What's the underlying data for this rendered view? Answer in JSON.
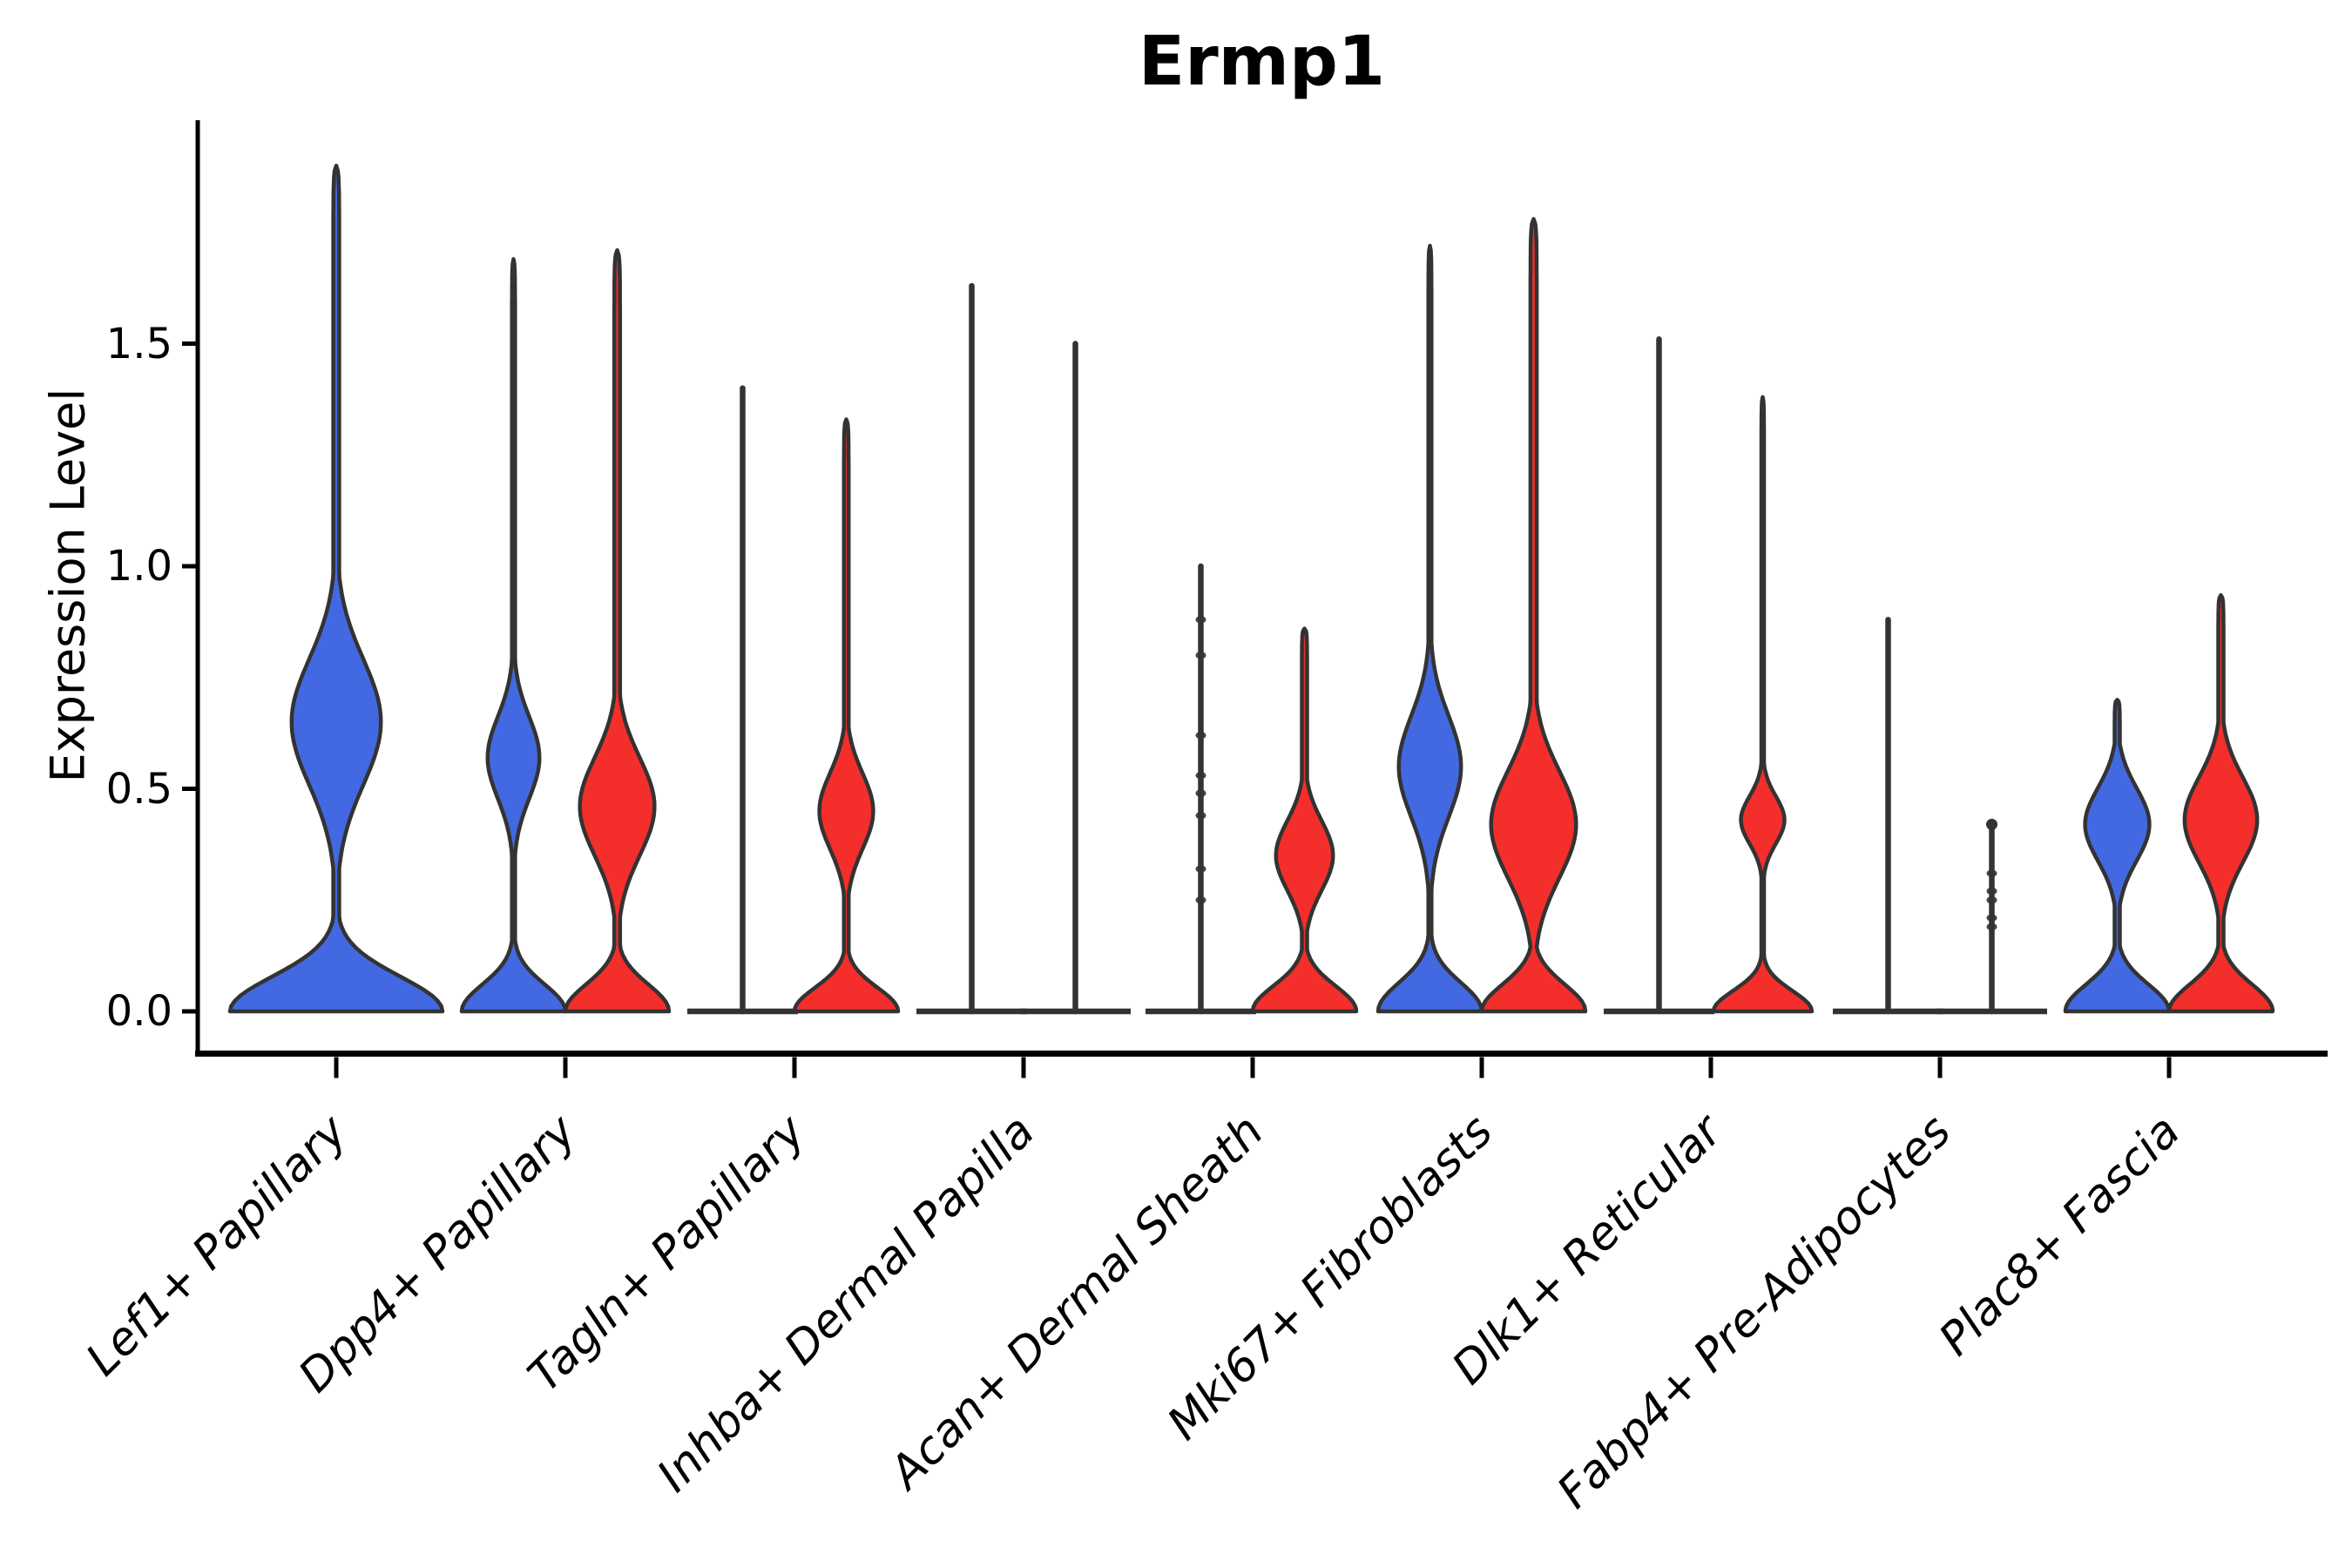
{
  "chart_data": {
    "type": "violin",
    "title": "Ermp1",
    "ylabel": "Expression Level",
    "xlabel": "",
    "ytick_labels": [
      "0.0",
      "0.5",
      "1.0",
      "1.5"
    ],
    "ytick_values": [
      0.0,
      0.5,
      1.0,
      1.5
    ],
    "ylim": [
      -0.09,
      2.0
    ],
    "grid": false,
    "legend_position": "none",
    "groups": [
      {
        "id": "blue",
        "color": "#4269E1"
      },
      {
        "id": "red",
        "color": "#F42E2A"
      }
    ],
    "categories": [
      "Lef1+ Papillary",
      "Dpp4+ Papillary",
      "Tagln+ Papillary",
      "Inhba+ Dermal Papilla",
      "Acan+ Dermal Sheath",
      "Mki67+ Fibroblasts",
      "Dlk1+ Reticular",
      "Fabp4+ Pre-Adipocytes",
      "Plac8+ Fascia"
    ],
    "violins": [
      {
        "category": "Lef1+ Papillary",
        "group": "blue",
        "kind": "violin",
        "span": "full",
        "max_expression": 1.9,
        "base_width": 1.0,
        "base_falloff": 0.11,
        "bulge_center": 0.65,
        "bulge_width": 0.42,
        "bulge_spread": 0.2,
        "tail_width": 0.028
      },
      {
        "category": "Dpp4+ Papillary",
        "group": "blue",
        "kind": "violin",
        "span": "half",
        "max_expression": 1.69,
        "base_width": 1.0,
        "base_falloff": 0.085,
        "bulge_center": 0.57,
        "bulge_width": 0.5,
        "bulge_spread": 0.13,
        "tail_width": 0.03
      },
      {
        "category": "Dpp4+ Papillary",
        "group": "red",
        "kind": "violin",
        "span": "half",
        "max_expression": 1.71,
        "base_width": 1.0,
        "base_falloff": 0.085,
        "bulge_center": 0.46,
        "bulge_width": 0.72,
        "bulge_spread": 0.155,
        "tail_width": 0.055
      },
      {
        "category": "Tagln+ Papillary",
        "group": "blue",
        "kind": "line",
        "span": "half",
        "max_expression": 1.4,
        "dots": []
      },
      {
        "category": "Tagln+ Papillary",
        "group": "red",
        "kind": "violin",
        "span": "half",
        "max_expression": 1.33,
        "base_width": 1.0,
        "base_falloff": 0.075,
        "bulge_center": 0.45,
        "bulge_width": 0.52,
        "bulge_spread": 0.12,
        "tail_width": 0.045
      },
      {
        "category": "Inhba+ Dermal Papilla",
        "group": "blue",
        "kind": "line",
        "span": "half",
        "max_expression": 1.63,
        "dots": []
      },
      {
        "category": "Inhba+ Dermal Papilla",
        "group": "red",
        "kind": "line",
        "span": "half",
        "max_expression": 1.5,
        "dots": []
      },
      {
        "category": "Acan+ Dermal Sheath",
        "group": "blue",
        "kind": "line",
        "span": "half",
        "max_expression": 1.0,
        "dots": [
          0.88,
          0.8,
          0.62,
          0.53,
          0.49,
          0.44,
          0.32,
          0.25
        ]
      },
      {
        "category": "Acan+ Dermal Sheath",
        "group": "red",
        "kind": "violin",
        "span": "half",
        "max_expression": 0.86,
        "base_width": 1.0,
        "base_falloff": 0.08,
        "bulge_center": 0.35,
        "bulge_width": 0.55,
        "bulge_spread": 0.11,
        "tail_width": 0.05
      },
      {
        "category": "Mki67+ Fibroblasts",
        "group": "blue",
        "kind": "violin",
        "span": "half",
        "max_expression": 1.72,
        "base_width": 1.0,
        "base_falloff": 0.09,
        "bulge_center": 0.55,
        "bulge_width": 0.6,
        "bulge_spread": 0.16,
        "tail_width": 0.03
      },
      {
        "category": "Mki67+ Fibroblasts",
        "group": "red",
        "kind": "violin",
        "span": "half",
        "max_expression": 1.78,
        "base_width": 1.0,
        "base_falloff": 0.085,
        "bulge_center": 0.42,
        "bulge_width": 0.82,
        "bulge_spread": 0.17,
        "tail_width": 0.06
      },
      {
        "category": "Dlk1+ Reticular",
        "group": "blue",
        "kind": "line",
        "span": "half",
        "max_expression": 1.51,
        "dots": []
      },
      {
        "category": "Dlk1+ Reticular",
        "group": "red",
        "kind": "violin",
        "span": "half",
        "max_expression": 1.38,
        "base_width": 0.95,
        "base_falloff": 0.065,
        "bulge_center": 0.43,
        "bulge_width": 0.42,
        "bulge_spread": 0.075,
        "tail_width": 0.025
      },
      {
        "category": "Fabp4+ Pre-Adipocytes",
        "group": "blue",
        "kind": "line",
        "span": "half",
        "max_expression": 0.88,
        "dots": []
      },
      {
        "category": "Fabp4+ Pre-Adipocytes",
        "group": "red",
        "kind": "line",
        "span": "half",
        "max_expression": 0.42,
        "knob": true,
        "dots": [
          0.31,
          0.27,
          0.25,
          0.21,
          0.19
        ]
      },
      {
        "category": "Plac8+ Fascia",
        "group": "blue",
        "kind": "violin",
        "span": "half",
        "max_expression": 0.7,
        "base_width": 1.0,
        "base_falloff": 0.085,
        "bulge_center": 0.42,
        "bulge_width": 0.62,
        "bulge_spread": 0.115,
        "tail_width": 0.05
      },
      {
        "category": "Plac8+ Fascia",
        "group": "red",
        "kind": "violin",
        "span": "half",
        "max_expression": 0.935,
        "base_width": 1.0,
        "base_falloff": 0.085,
        "bulge_center": 0.43,
        "bulge_width": 0.7,
        "bulge_spread": 0.135,
        "tail_width": 0.05
      }
    ]
  },
  "style": {
    "outline_color": "#333333",
    "axis_color": "#000000",
    "background": "#ffffff"
  }
}
